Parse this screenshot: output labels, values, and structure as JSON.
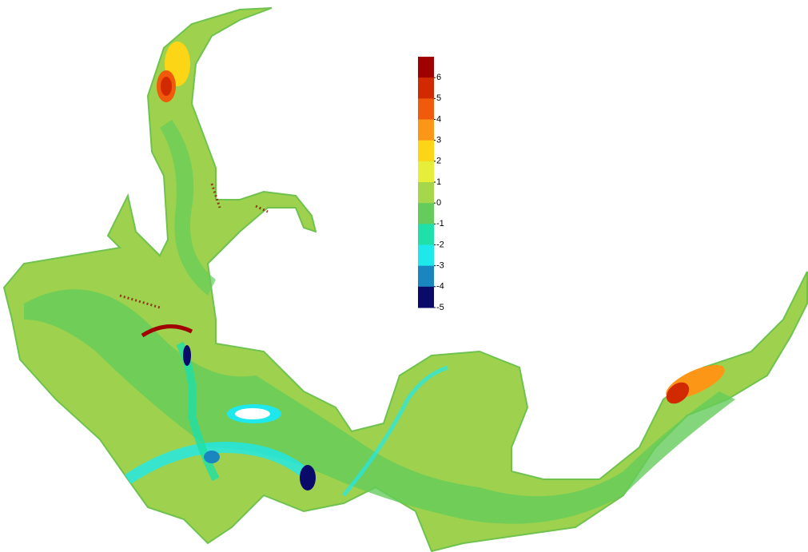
{
  "colorbar": {
    "range": [
      -5,
      7
    ],
    "ticks": [
      6,
      5,
      4,
      3,
      2,
      1,
      0,
      -1,
      -2,
      -3,
      -4,
      -5
    ],
    "colors": [
      "#a00000",
      "#d22a00",
      "#f05a0a",
      "#fb9616",
      "#fcd616",
      "#e6ee3a",
      "#a6d64a",
      "#64cc5a",
      "#1ee0a8",
      "#1ee8ec",
      "#1a86c0",
      "#0a0a6a"
    ]
  }
}
